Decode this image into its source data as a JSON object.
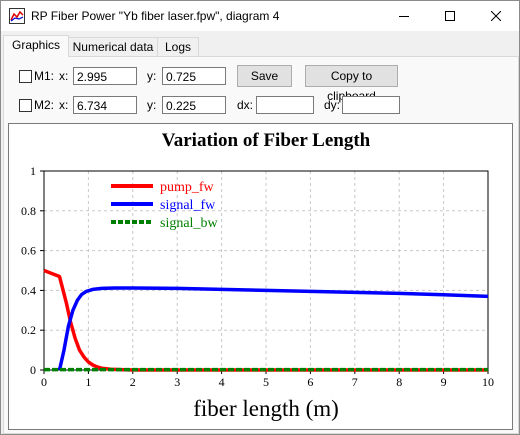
{
  "window": {
    "title": "RP Fiber Power \"Yb fiber laser.fpw\", diagram 4",
    "minimize_icon": "minimize-icon",
    "maximize_icon": "maximize-icon",
    "close_icon": "close-icon"
  },
  "tabs": [
    {
      "label": "Graphics",
      "active": true
    },
    {
      "label": "Numerical data",
      "active": false
    },
    {
      "label": "Logs",
      "active": false
    }
  ],
  "markers": {
    "m1": {
      "label": "M1:",
      "checked": false,
      "x_label": "x:",
      "x_value": "2.995",
      "y_label": "y:",
      "y_value": "0.725"
    },
    "m2": {
      "label": "M2:",
      "checked": false,
      "x_label": "x:",
      "x_value": "6.734",
      "y_label": "y:",
      "y_value": "0.225"
    },
    "dx_label": "dx:",
    "dx_value": "",
    "dy_label": "dy:",
    "dy_value": ""
  },
  "buttons": {
    "save": "Save",
    "copy": "Copy to clipboard"
  },
  "chart_data": {
    "type": "line",
    "title": "Variation of Fiber Length",
    "xlabel": "fiber length (m)",
    "ylabel": "",
    "xlim": [
      0,
      10
    ],
    "ylim": [
      0,
      1
    ],
    "xticks": [
      "0",
      "1",
      "2",
      "3",
      "4",
      "5",
      "6",
      "7",
      "8",
      "9",
      "10"
    ],
    "yticks": [
      "0",
      "0.2",
      "0.4",
      "0.6",
      "0.8",
      "1"
    ],
    "grid": true,
    "legend_position": "top-left",
    "series": [
      {
        "name": "pump_fw",
        "color": "#ff0000",
        "dashed": false,
        "x": [
          0,
          0.35,
          0.5,
          0.6,
          0.7,
          0.8,
          0.9,
          1.0,
          1.1,
          1.2,
          1.3,
          1.5,
          1.8,
          2.2,
          10
        ],
        "y": [
          0.5,
          0.47,
          0.34,
          0.24,
          0.16,
          0.1,
          0.065,
          0.04,
          0.025,
          0.015,
          0.009,
          0.004,
          0.001,
          0.0,
          0.0
        ]
      },
      {
        "name": "signal_fw",
        "color": "#0000ff",
        "dashed": false,
        "x": [
          0.35,
          0.45,
          0.55,
          0.65,
          0.75,
          0.85,
          0.95,
          1.1,
          1.3,
          1.6,
          2.0,
          3.0,
          4.0,
          5.0,
          6.0,
          7.0,
          8.0,
          9.0,
          10
        ],
        "y": [
          0.0,
          0.1,
          0.22,
          0.3,
          0.35,
          0.38,
          0.395,
          0.405,
          0.41,
          0.412,
          0.412,
          0.41,
          0.405,
          0.4,
          0.395,
          0.39,
          0.385,
          0.378,
          0.37
        ]
      },
      {
        "name": "signal_bw",
        "color": "#008000",
        "dashed": true,
        "x": [
          0,
          10
        ],
        "y": [
          0.002,
          0.002
        ]
      }
    ]
  }
}
